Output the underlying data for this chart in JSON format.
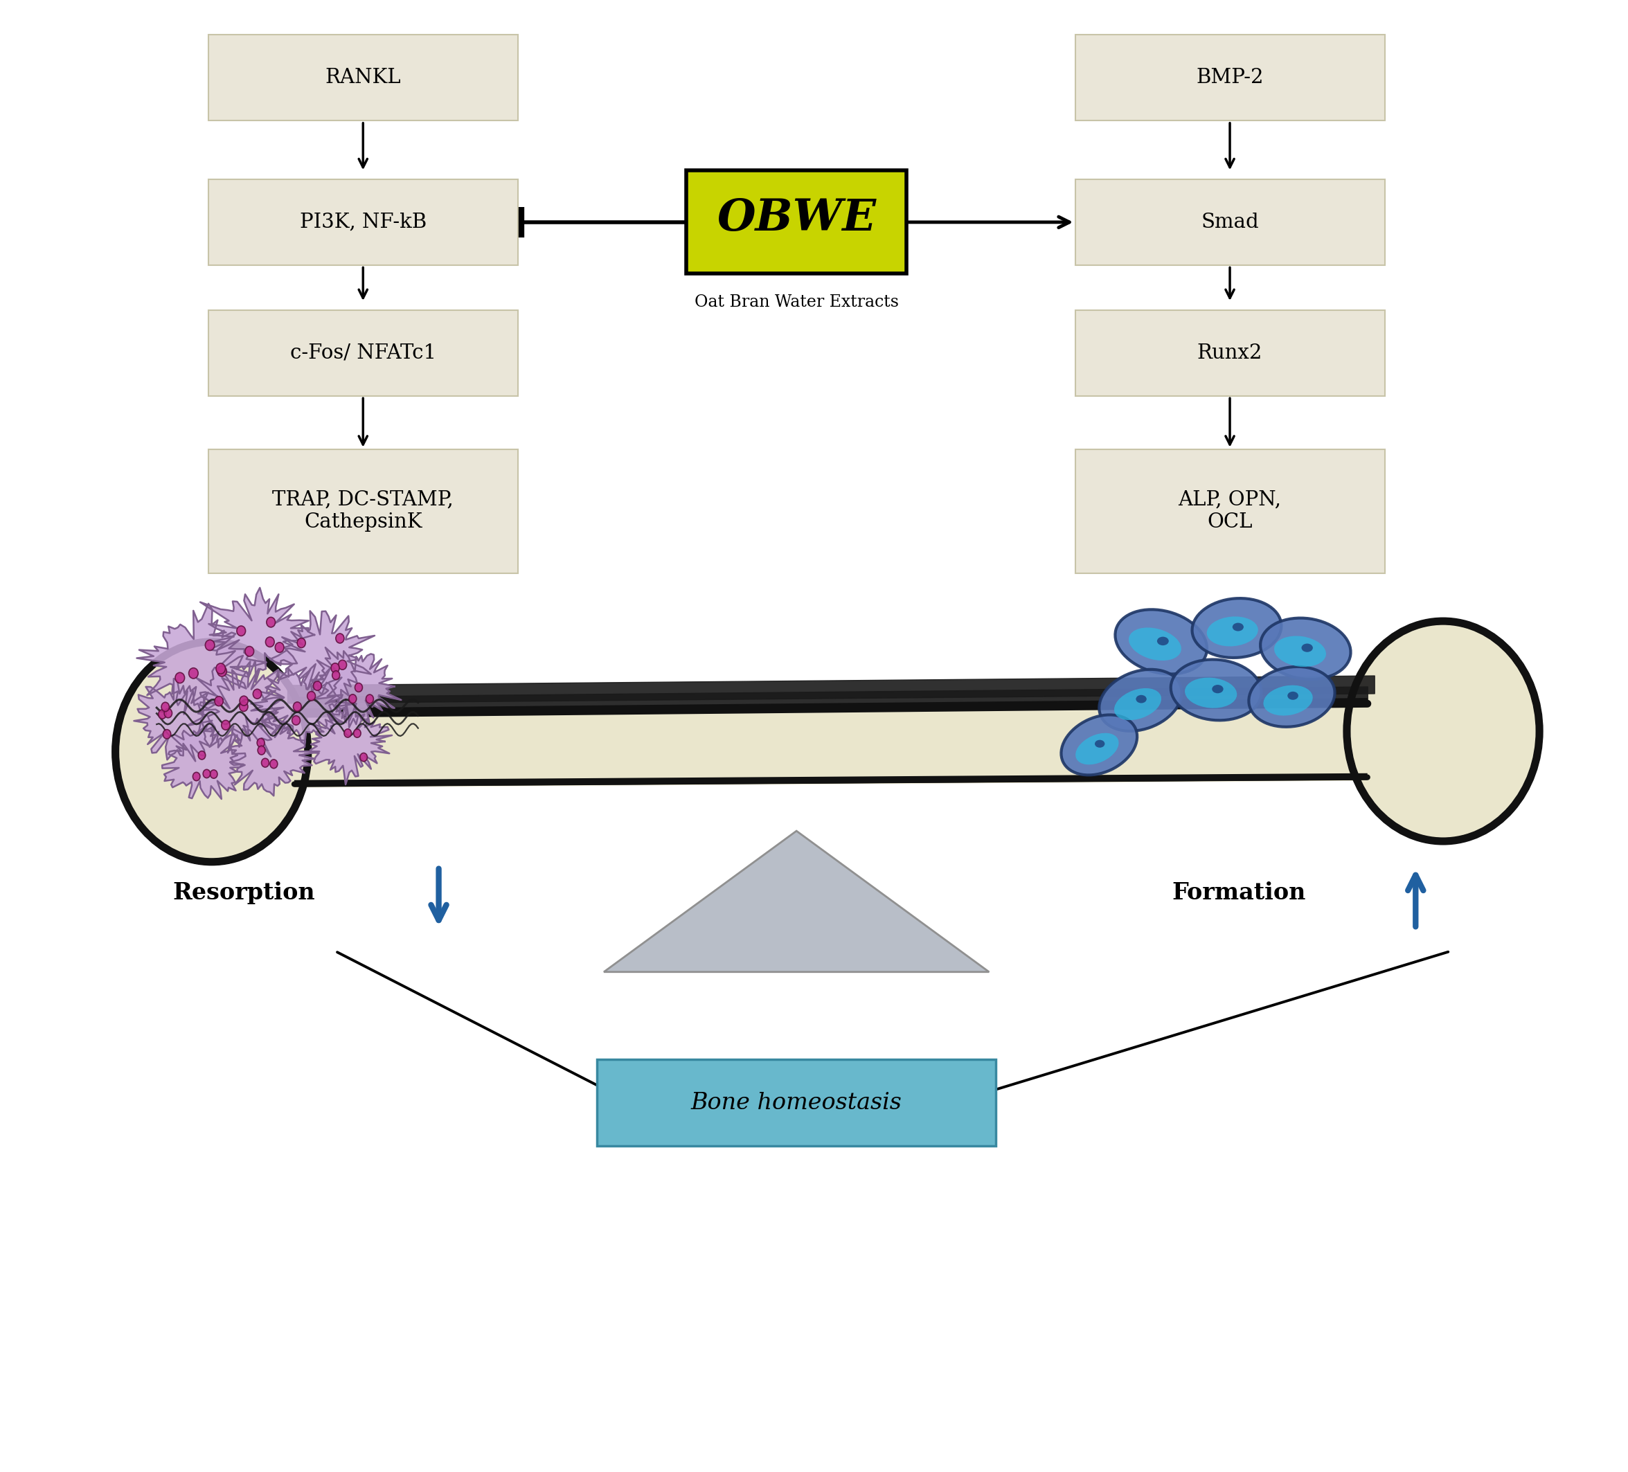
{
  "bg_color": "#ffffff",
  "box_color": "#eae6d8",
  "box_edge_color": "#c8c4a8",
  "obwe_bg": "#c8d400",
  "obwe_text_color": "#000000",
  "obwe_label": "OBWE",
  "obwe_sublabel": "Oat Bran Water Extracts",
  "left_labels": [
    "RANKL",
    "PI3K, NF-kB",
    "c-Fos/ NFATc1",
    "TRAP, DC-STAMP,\nCathepsinK"
  ],
  "right_labels": [
    "BMP-2",
    "Smad",
    "Runx2",
    "ALP, OPN,\nOCL"
  ],
  "bone_color": "#eae6cc",
  "bone_outline": "#111111",
  "osteoclast_color": "#c8a8d8",
  "osteoclast_nucleus": "#c03090",
  "osteoclast_edge": "#806090",
  "osteoblast_color": "#5878b8",
  "osteoblast_inner": "#30b8e0",
  "osteoblast_edge": "#203868",
  "resorption_label": "Resorption",
  "formation_label": "Formation",
  "homeostasis_label": "Bone homeostasis",
  "homeostasis_bg": "#68b8cc",
  "homeostasis_edge": "#3888a0",
  "arrow_color": "#2060a0",
  "triangle_color": "#b8bec8",
  "triangle_edge": "#909090"
}
